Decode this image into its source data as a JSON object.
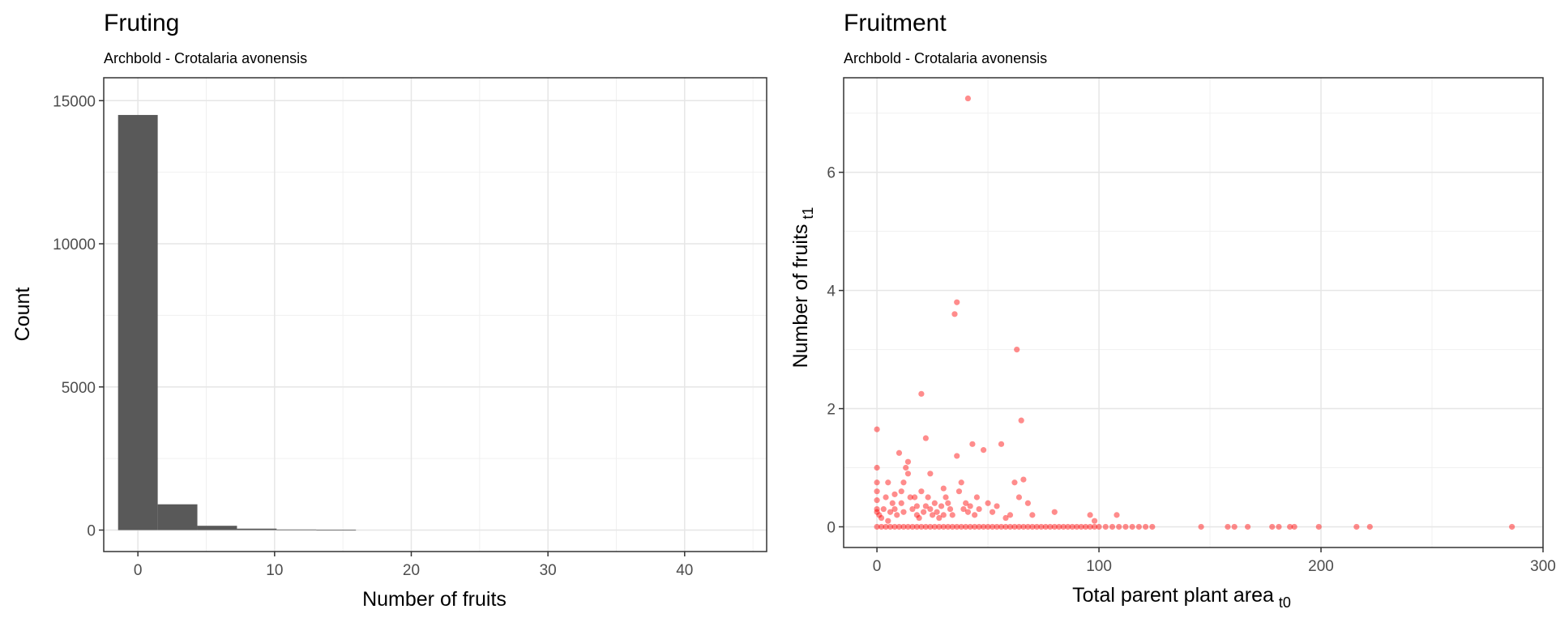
{
  "chart_data": [
    {
      "type": "bar",
      "title": "Fruting",
      "subtitle": "Archbold - Crotalaria avonensis",
      "xlabel": "Number of fruits",
      "ylabel": "Count",
      "xlim": [
        -2.5,
        46
      ],
      "ylim": [
        -750,
        15800
      ],
      "xticks": [
        "0",
        "10",
        "20",
        "30",
        "40"
      ],
      "yticks": [
        "0",
        "5000",
        "10000",
        "15000"
      ],
      "grid": true,
      "bar_color": "#595959",
      "bin_width": 2.9,
      "bins": [
        {
          "x": 0.0,
          "count": 14500
        },
        {
          "x": 2.9,
          "count": 900
        },
        {
          "x": 5.8,
          "count": 150
        },
        {
          "x": 8.7,
          "count": 50
        },
        {
          "x": 11.6,
          "count": 20
        },
        {
          "x": 14.5,
          "count": 8
        }
      ]
    },
    {
      "type": "scatter",
      "title": "Fruitment",
      "subtitle": "Archbold - Crotalaria avonensis",
      "xlabel": "Total parent plant area",
      "xlabel_sub": "t0",
      "ylabel": "Number of fruits",
      "ylabel_sub": "t1",
      "xlim": [
        -15,
        300
      ],
      "ylim": [
        -0.35,
        7.6
      ],
      "xticks": [
        "0",
        "100",
        "200",
        "300"
      ],
      "yticks": [
        "0",
        "2",
        "4",
        "6"
      ],
      "grid": true,
      "point_color": "#ff0000",
      "points": [
        [
          0,
          0
        ],
        [
          2,
          0
        ],
        [
          4,
          0
        ],
        [
          6,
          0
        ],
        [
          8,
          0
        ],
        [
          10,
          0
        ],
        [
          12,
          0
        ],
        [
          14,
          0
        ],
        [
          16,
          0
        ],
        [
          18,
          0
        ],
        [
          20,
          0
        ],
        [
          22,
          0
        ],
        [
          24,
          0
        ],
        [
          26,
          0
        ],
        [
          28,
          0
        ],
        [
          30,
          0
        ],
        [
          32,
          0
        ],
        [
          34,
          0
        ],
        [
          36,
          0
        ],
        [
          38,
          0
        ],
        [
          40,
          0
        ],
        [
          42,
          0
        ],
        [
          44,
          0
        ],
        [
          46,
          0
        ],
        [
          48,
          0
        ],
        [
          50,
          0
        ],
        [
          52,
          0
        ],
        [
          54,
          0
        ],
        [
          56,
          0
        ],
        [
          58,
          0
        ],
        [
          60,
          0
        ],
        [
          62,
          0
        ],
        [
          64,
          0
        ],
        [
          66,
          0
        ],
        [
          68,
          0
        ],
        [
          70,
          0
        ],
        [
          72,
          0
        ],
        [
          74,
          0
        ],
        [
          76,
          0
        ],
        [
          78,
          0
        ],
        [
          80,
          0
        ],
        [
          82,
          0
        ],
        [
          84,
          0
        ],
        [
          86,
          0
        ],
        [
          88,
          0
        ],
        [
          90,
          0
        ],
        [
          92,
          0
        ],
        [
          94,
          0
        ],
        [
          96,
          0
        ],
        [
          98,
          0
        ],
        [
          100,
          0
        ],
        [
          103,
          0
        ],
        [
          106,
          0
        ],
        [
          109,
          0
        ],
        [
          112,
          0
        ],
        [
          115,
          0
        ],
        [
          118,
          0
        ],
        [
          121,
          0
        ],
        [
          124,
          0
        ],
        [
          146,
          0
        ],
        [
          158,
          0
        ],
        [
          161,
          0
        ],
        [
          167,
          0
        ],
        [
          178,
          0
        ],
        [
          181,
          0
        ],
        [
          186,
          0
        ],
        [
          188,
          0
        ],
        [
          199,
          0
        ],
        [
          216,
          0
        ],
        [
          222,
          0
        ],
        [
          286,
          0
        ],
        [
          0,
          1.65
        ],
        [
          0,
          1.0
        ],
        [
          0,
          0.75
        ],
        [
          0,
          0.6
        ],
        [
          0,
          0.45
        ],
        [
          0,
          0.3
        ],
        [
          0,
          0.25
        ],
        [
          1,
          0.2
        ],
        [
          2,
          0.15
        ],
        [
          3,
          0.3
        ],
        [
          4,
          0.5
        ],
        [
          5,
          0.1
        ],
        [
          6,
          0.25
        ],
        [
          7,
          0.4
        ],
        [
          8,
          0.3
        ],
        [
          9,
          0.2
        ],
        [
          10,
          1.25
        ],
        [
          11,
          0.4
        ],
        [
          11,
          0.6
        ],
        [
          12,
          0.75
        ],
        [
          13,
          1.0
        ],
        [
          14,
          0.9
        ],
        [
          14,
          1.1
        ],
        [
          15,
          0.5
        ],
        [
          16,
          0.3
        ],
        [
          17,
          0.5
        ],
        [
          18,
          0.2
        ],
        [
          19,
          0.15
        ],
        [
          20,
          2.25
        ],
        [
          21,
          0.25
        ],
        [
          22,
          1.5
        ],
        [
          23,
          0.5
        ],
        [
          24,
          0.9
        ],
        [
          24,
          0.3
        ],
        [
          25,
          0.2
        ],
        [
          26,
          0.4
        ],
        [
          27,
          0.25
        ],
        [
          28,
          0.15
        ],
        [
          29,
          0.35
        ],
        [
          30,
          0.65
        ],
        [
          31,
          0.5
        ],
        [
          32,
          0.4
        ],
        [
          33,
          0.3
        ],
        [
          34,
          0.2
        ],
        [
          35,
          3.6
        ],
        [
          36,
          3.8
        ],
        [
          36,
          1.2
        ],
        [
          37,
          0.6
        ],
        [
          38,
          0.75
        ],
        [
          39,
          0.3
        ],
        [
          40,
          0.4
        ],
        [
          41,
          0.25
        ],
        [
          42,
          0.35
        ],
        [
          43,
          1.4
        ],
        [
          44,
          0.2
        ],
        [
          45,
          0.5
        ],
        [
          46,
          0.3
        ],
        [
          48,
          1.3
        ],
        [
          50,
          0.4
        ],
        [
          52,
          0.25
        ],
        [
          54,
          0.35
        ],
        [
          56,
          1.4
        ],
        [
          58,
          0.15
        ],
        [
          60,
          0.2
        ],
        [
          62,
          0.75
        ],
        [
          63,
          3.0
        ],
        [
          64,
          0.5
        ],
        [
          65,
          1.8
        ],
        [
          66,
          0.8
        ],
        [
          68,
          0.4
        ],
        [
          70,
          0.2
        ],
        [
          80,
          0.25
        ],
        [
          96,
          0.2
        ],
        [
          98,
          0.1
        ],
        [
          108,
          0.2
        ],
        [
          41,
          7.25
        ],
        [
          18,
          0.35
        ],
        [
          20,
          0.6
        ],
        [
          22,
          0.35
        ],
        [
          5,
          0.75
        ],
        [
          8,
          0.55
        ],
        [
          30,
          0.2
        ],
        [
          12,
          0.25
        ]
      ]
    }
  ]
}
